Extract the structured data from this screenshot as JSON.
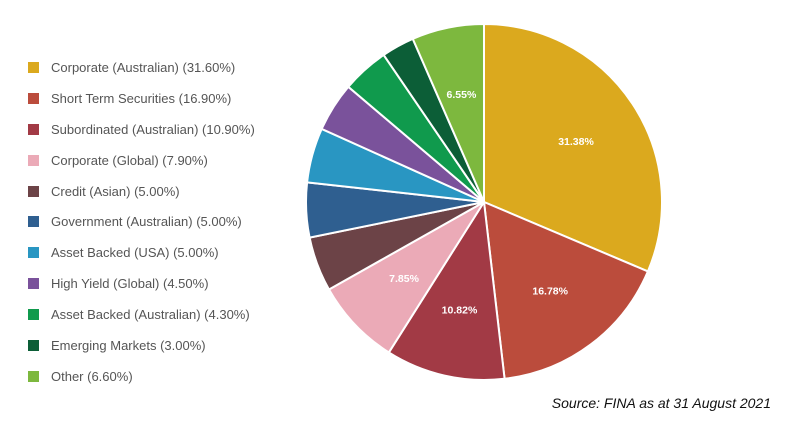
{
  "chart_data": {
    "type": "pie",
    "legend_position": "left",
    "slices": [
      {
        "legend": "Corporate (Australian) (31.60%)",
        "label": "31.38%",
        "value": 31.38,
        "color": "#dba91e"
      },
      {
        "legend": "Short Term Securities (16.90%)",
        "label": "16.78%",
        "value": 16.78,
        "color": "#bb4c3c"
      },
      {
        "legend": "Subordinated (Australian) (10.90%)",
        "label": "10.82%",
        "value": 10.82,
        "color": "#a23a45"
      },
      {
        "legend": "Corporate (Global) (7.90%)",
        "label": "7.85%",
        "value": 7.85,
        "color": "#ebaab7"
      },
      {
        "legend": "Credit (Asian) (5.00%)",
        "label": "",
        "value": 4.97,
        "color": "#6c4347"
      },
      {
        "legend": "Government (Australian) (5.00%)",
        "label": "",
        "value": 4.97,
        "color": "#2f5f90"
      },
      {
        "legend": "Asset Backed (USA) (5.00%)",
        "label": "",
        "value": 4.97,
        "color": "#2996c2"
      },
      {
        "legend": "High Yield (Global) (4.50%)",
        "label": "",
        "value": 4.47,
        "color": "#7a529b"
      },
      {
        "legend": "Asset Backed (Australian) (4.30%)",
        "label": "",
        "value": 4.27,
        "color": "#109a4d"
      },
      {
        "legend": "Emerging Markets (3.00%)",
        "label": "",
        "value": 2.98,
        "color": "#0c5e37"
      },
      {
        "legend": "Other (6.60%)",
        "label": "6.55%",
        "value": 6.55,
        "color": "#7db83e"
      }
    ]
  },
  "source_note": "Source: FINA as at 31 August 2021"
}
